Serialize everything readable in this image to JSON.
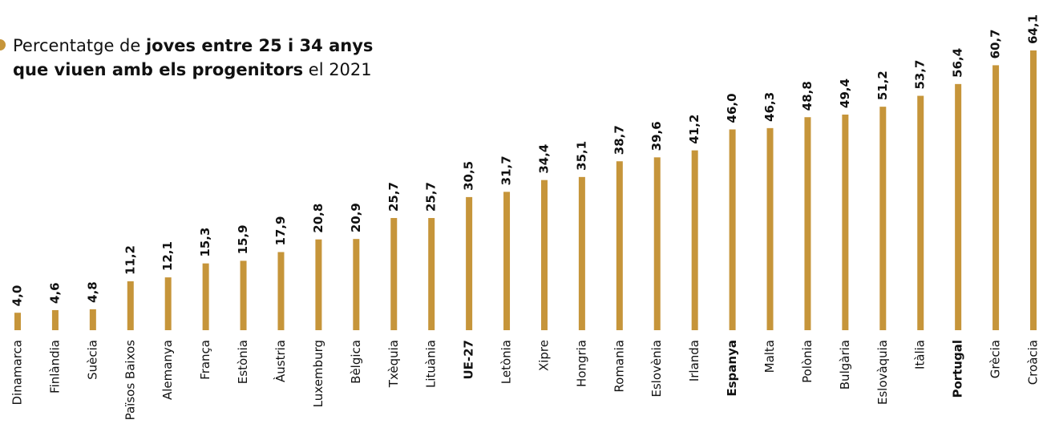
{
  "chart_data": {
    "type": "bar",
    "title_lines": [
      [
        {
          "text": "Percentatge de ",
          "bold": false
        },
        {
          "text": "joves entre 25 i 34 anys",
          "bold": true
        }
      ],
      [
        {
          "text": "que viuen amb els progenitors",
          "bold": true
        },
        {
          "text": " el 2021",
          "bold": false
        }
      ]
    ],
    "categories": [
      "Dinamarca",
      "Finlàndia",
      "Suècia",
      "Països Baixos",
      "Alemanya",
      "França",
      "Estònia",
      "Àustria",
      "Luxemburg",
      "Bèlgica",
      "Txèquia",
      "Lituània",
      "UE-27",
      "Letònia",
      "Xipre",
      "Hongria",
      "Romania",
      "Eslovènia",
      "Irlanda",
      "Espanya",
      "Malta",
      "Polònia",
      "Bulgària",
      "Eslovàquia",
      "Itàlia",
      "Portugal",
      "Grècia",
      "Croàcia"
    ],
    "values": [
      4.0,
      4.6,
      4.8,
      11.2,
      12.1,
      15.3,
      15.9,
      17.9,
      20.8,
      20.9,
      25.7,
      25.7,
      30.5,
      31.7,
      34.4,
      35.1,
      38.7,
      39.6,
      41.2,
      46.0,
      46.3,
      48.8,
      49.4,
      51.2,
      53.7,
      56.4,
      60.7,
      64.1
    ],
    "value_labels": [
      "4,0",
      "4,6",
      "4,8",
      "11,2",
      "12,1",
      "15,3",
      "15,9",
      "17,9",
      "20,8",
      "20,9",
      "25,7",
      "25,7",
      "30,5",
      "31,7",
      "34,4",
      "35,1",
      "38,7",
      "39,6",
      "41,2",
      "46,0",
      "46,3",
      "48,8",
      "49,4",
      "51,2",
      "53,7",
      "56,4",
      "60,7",
      "64,1"
    ],
    "highlight": [
      "UE-27",
      "Espanya",
      "Portugal"
    ],
    "color": "#c6953a",
    "ylim": [
      0,
      65
    ]
  }
}
